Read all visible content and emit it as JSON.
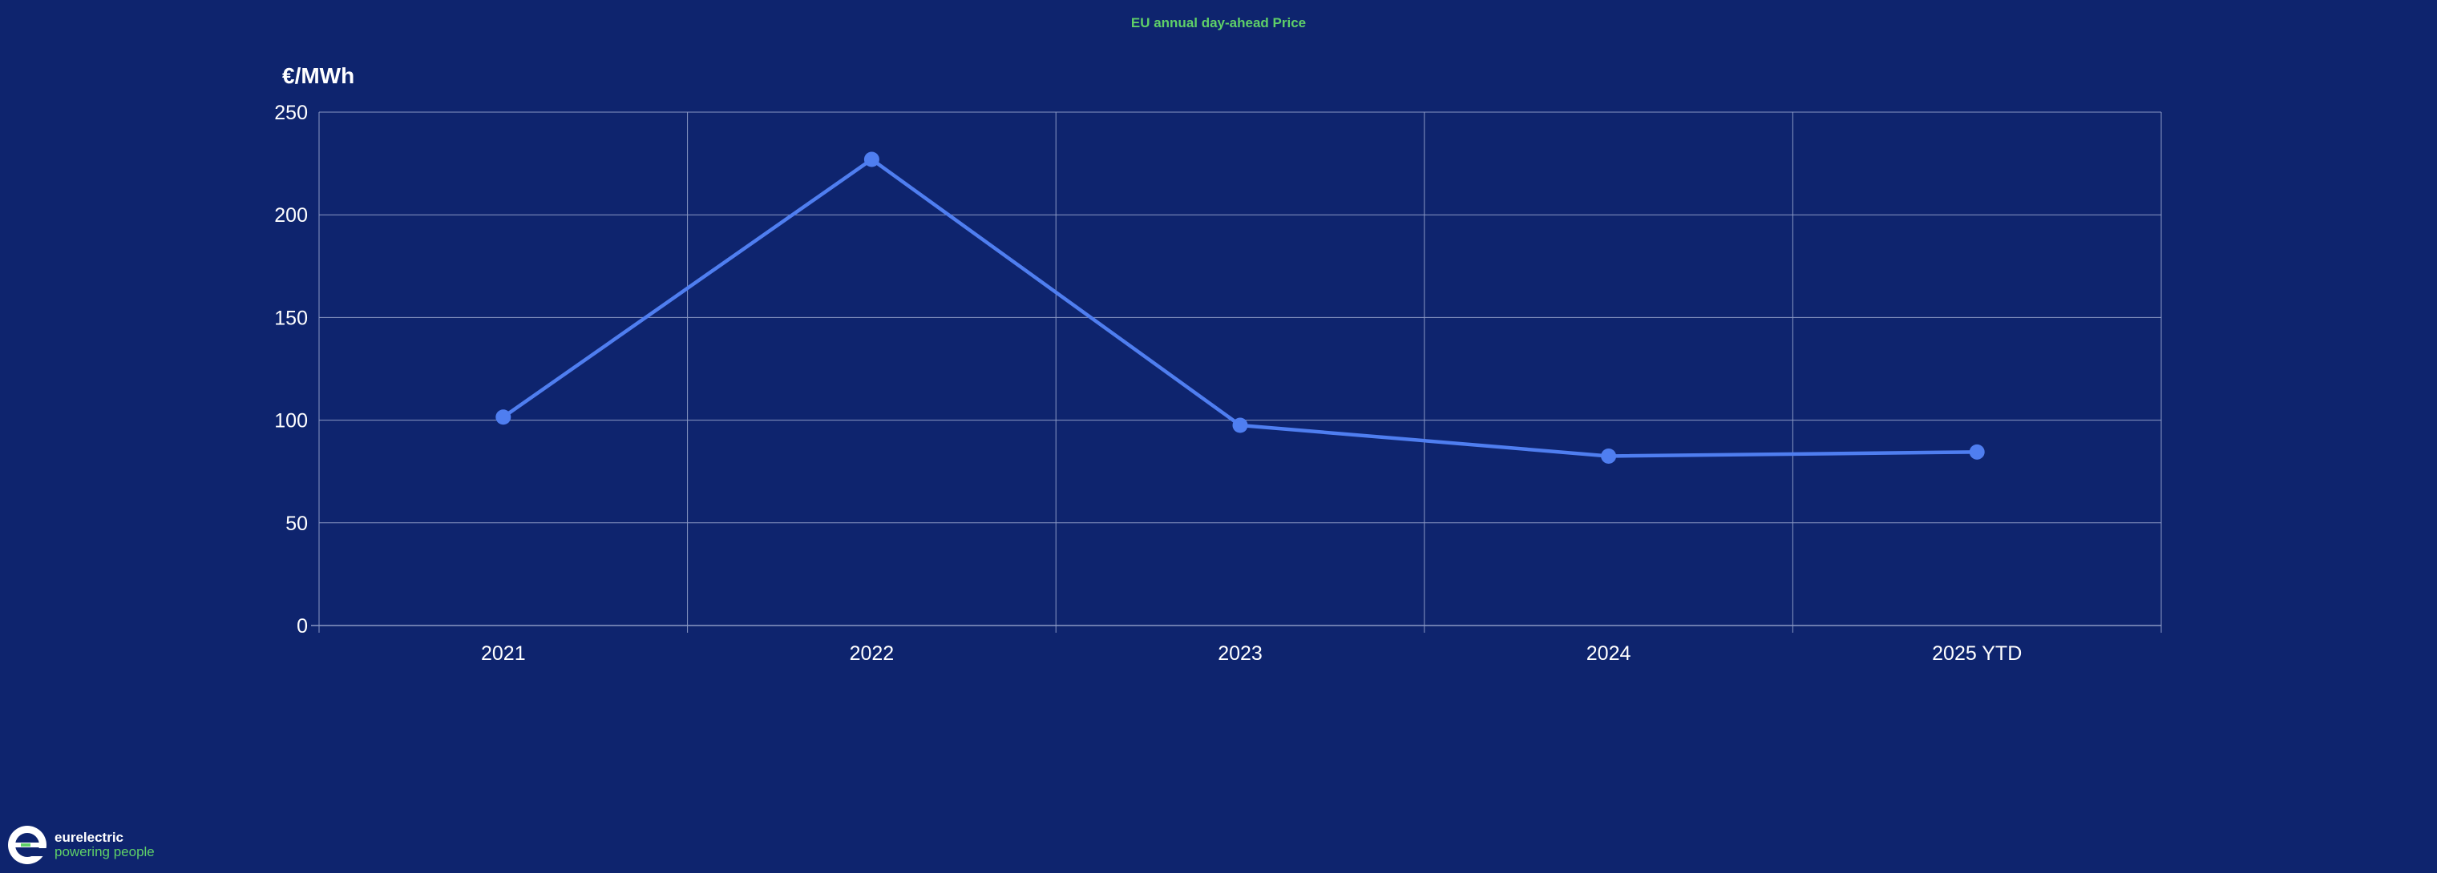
{
  "chart_data": {
    "type": "line",
    "title": "EU annual day-ahead Price",
    "ylabel": "€/MWh",
    "xlabel": "",
    "categories": [
      "2021",
      "2022",
      "2023",
      "2024",
      "2025 YTD"
    ],
    "series": [
      {
        "values": [
          101.5,
          227,
          97.5,
          82.5,
          84.5
        ]
      }
    ],
    "ylim": [
      0,
      250
    ],
    "yticks": [
      0,
      50,
      100,
      150,
      200,
      250
    ],
    "grid": true,
    "legend": "none",
    "colors": {
      "background": "#0e246e",
      "line": "#4f7ef0",
      "grid": "#8a98c4",
      "title": "#5fd068",
      "text": "#ffffff"
    }
  },
  "brand": {
    "name": "eurelectric",
    "tagline": "powering people"
  }
}
